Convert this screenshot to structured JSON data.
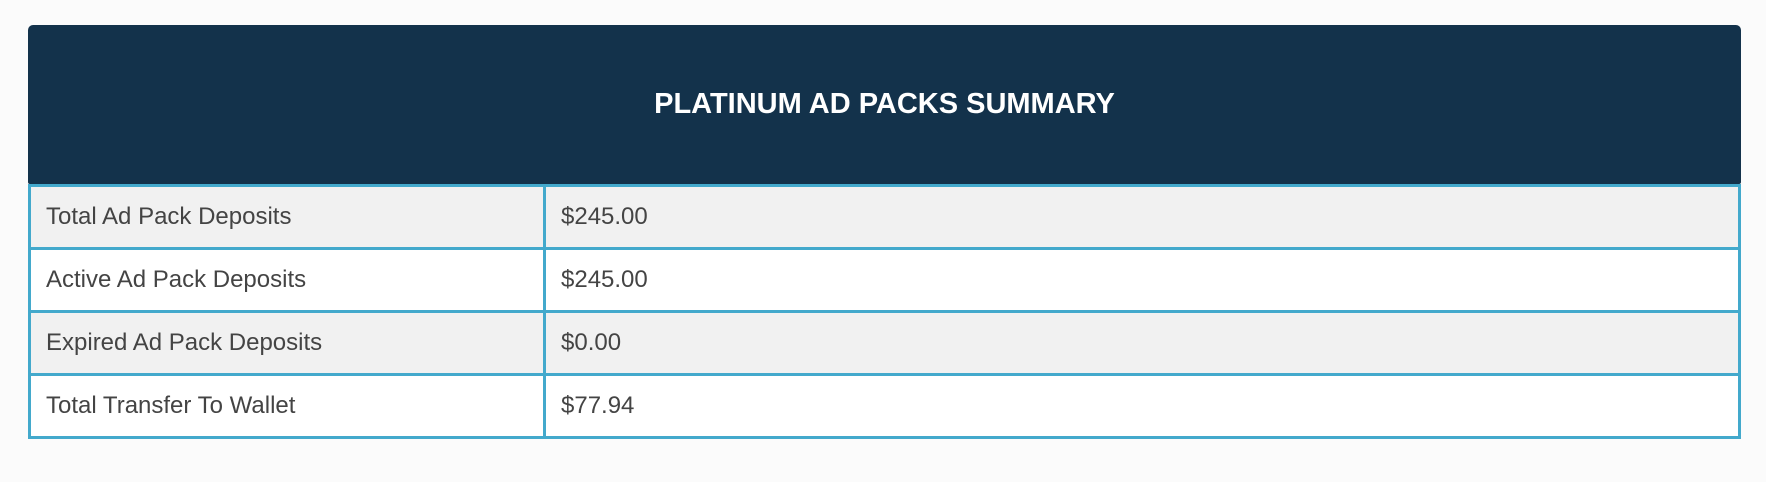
{
  "header": {
    "title": "PLATINUM AD PACKS SUMMARY"
  },
  "table": {
    "rows": [
      [
        "Total Ad Pack Deposits",
        "$245.00"
      ],
      [
        "Active Ad Pack Deposits",
        "$245.00"
      ],
      [
        "Expired Ad Pack Deposits",
        "$0.00"
      ],
      [
        "Total Transfer To Wallet",
        "$77.94"
      ]
    ]
  }
}
